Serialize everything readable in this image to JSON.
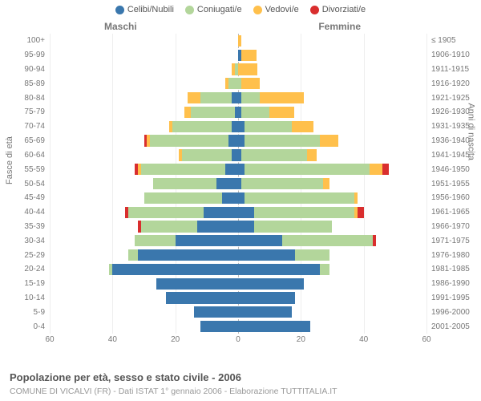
{
  "chart": {
    "type": "population-pyramid",
    "title": "Popolazione per età, sesso e stato civile - 2006",
    "subtitle": "COMUNE DI VICALVI (FR) - Dati ISTAT 1° gennaio 2006 - Elaborazione TUTTITALIA.IT",
    "y_label_left": "Fasce di età",
    "y_label_right": "Anni di nascita",
    "gender_labels": {
      "male": "Maschi",
      "female": "Femmine"
    },
    "legend": [
      {
        "label": "Celibi/Nubili",
        "color": "#3a77ad"
      },
      {
        "label": "Coniugati/e",
        "color": "#b3d69b"
      },
      {
        "label": "Vedovi/e",
        "color": "#ffc04c"
      },
      {
        "label": "Divorziati/e",
        "color": "#d92e2e"
      }
    ],
    "series_keys": [
      "single",
      "married",
      "widowed",
      "divorced"
    ],
    "colors": {
      "single": "#3a77ad",
      "married": "#b3d69b",
      "widowed": "#ffc04c",
      "divorced": "#d92e2e"
    },
    "xlim": 60,
    "x_ticks": [
      60,
      40,
      20,
      0,
      20,
      40,
      60
    ],
    "background_color": "#ffffff",
    "grid_color": "#eeeeee",
    "center_line_color": "#bcbcbc",
    "label_fontsize": 10,
    "rows": [
      {
        "age": "100+",
        "birth": "≤ 1905",
        "m": {
          "single": 0,
          "married": 0,
          "widowed": 0,
          "divorced": 0
        },
        "f": {
          "single": 0,
          "married": 0,
          "widowed": 1,
          "divorced": 0
        }
      },
      {
        "age": "95-99",
        "birth": "1906-1910",
        "m": {
          "single": 0,
          "married": 0,
          "widowed": 0,
          "divorced": 0
        },
        "f": {
          "single": 1,
          "married": 0,
          "widowed": 5,
          "divorced": 0
        }
      },
      {
        "age": "90-94",
        "birth": "1911-1915",
        "m": {
          "single": 0,
          "married": 1,
          "widowed": 1,
          "divorced": 0
        },
        "f": {
          "single": 0,
          "married": 0,
          "widowed": 6,
          "divorced": 0
        }
      },
      {
        "age": "85-89",
        "birth": "1916-1920",
        "m": {
          "single": 0,
          "married": 3,
          "widowed": 1,
          "divorced": 0
        },
        "f": {
          "single": 0,
          "married": 1,
          "widowed": 6,
          "divorced": 0
        }
      },
      {
        "age": "80-84",
        "birth": "1921-1925",
        "m": {
          "single": 2,
          "married": 10,
          "widowed": 4,
          "divorced": 0
        },
        "f": {
          "single": 1,
          "married": 6,
          "widowed": 14,
          "divorced": 0
        }
      },
      {
        "age": "75-79",
        "birth": "1926-1930",
        "m": {
          "single": 1,
          "married": 14,
          "widowed": 2,
          "divorced": 0
        },
        "f": {
          "single": 1,
          "married": 9,
          "widowed": 8,
          "divorced": 0
        }
      },
      {
        "age": "70-74",
        "birth": "1931-1935",
        "m": {
          "single": 2,
          "married": 19,
          "widowed": 1,
          "divorced": 0
        },
        "f": {
          "single": 2,
          "married": 15,
          "widowed": 7,
          "divorced": 0
        }
      },
      {
        "age": "65-69",
        "birth": "1936-1940",
        "m": {
          "single": 3,
          "married": 25,
          "widowed": 1,
          "divorced": 1
        },
        "f": {
          "single": 2,
          "married": 24,
          "widowed": 6,
          "divorced": 0
        }
      },
      {
        "age": "60-64",
        "birth": "1941-1945",
        "m": {
          "single": 2,
          "married": 16,
          "widowed": 1,
          "divorced": 0
        },
        "f": {
          "single": 1,
          "married": 21,
          "widowed": 3,
          "divorced": 0
        }
      },
      {
        "age": "55-59",
        "birth": "1946-1950",
        "m": {
          "single": 4,
          "married": 27,
          "widowed": 1,
          "divorced": 1
        },
        "f": {
          "single": 2,
          "married": 40,
          "widowed": 4,
          "divorced": 2
        }
      },
      {
        "age": "50-54",
        "birth": "1951-1955",
        "m": {
          "single": 7,
          "married": 20,
          "widowed": 0,
          "divorced": 0
        },
        "f": {
          "single": 1,
          "married": 26,
          "widowed": 2,
          "divorced": 0
        }
      },
      {
        "age": "45-49",
        "birth": "1956-1960",
        "m": {
          "single": 5,
          "married": 25,
          "widowed": 0,
          "divorced": 0
        },
        "f": {
          "single": 2,
          "married": 35,
          "widowed": 1,
          "divorced": 0
        }
      },
      {
        "age": "40-44",
        "birth": "1961-1965",
        "m": {
          "single": 11,
          "married": 24,
          "widowed": 0,
          "divorced": 1
        },
        "f": {
          "single": 5,
          "married": 32,
          "widowed": 1,
          "divorced": 2
        }
      },
      {
        "age": "35-39",
        "birth": "1966-1970",
        "m": {
          "single": 13,
          "married": 18,
          "widowed": 0,
          "divorced": 1
        },
        "f": {
          "single": 5,
          "married": 25,
          "widowed": 0,
          "divorced": 0
        }
      },
      {
        "age": "30-34",
        "birth": "1971-1975",
        "m": {
          "single": 20,
          "married": 13,
          "widowed": 0,
          "divorced": 0
        },
        "f": {
          "single": 14,
          "married": 29,
          "widowed": 0,
          "divorced": 1
        }
      },
      {
        "age": "25-29",
        "birth": "1976-1980",
        "m": {
          "single": 32,
          "married": 3,
          "widowed": 0,
          "divorced": 0
        },
        "f": {
          "single": 18,
          "married": 11,
          "widowed": 0,
          "divorced": 0
        }
      },
      {
        "age": "20-24",
        "birth": "1981-1985",
        "m": {
          "single": 40,
          "married": 1,
          "widowed": 0,
          "divorced": 0
        },
        "f": {
          "single": 26,
          "married": 3,
          "widowed": 0,
          "divorced": 0
        }
      },
      {
        "age": "15-19",
        "birth": "1986-1990",
        "m": {
          "single": 26,
          "married": 0,
          "widowed": 0,
          "divorced": 0
        },
        "f": {
          "single": 21,
          "married": 0,
          "widowed": 0,
          "divorced": 0
        }
      },
      {
        "age": "10-14",
        "birth": "1991-1995",
        "m": {
          "single": 23,
          "married": 0,
          "widowed": 0,
          "divorced": 0
        },
        "f": {
          "single": 18,
          "married": 0,
          "widowed": 0,
          "divorced": 0
        }
      },
      {
        "age": "5-9",
        "birth": "1996-2000",
        "m": {
          "single": 14,
          "married": 0,
          "widowed": 0,
          "divorced": 0
        },
        "f": {
          "single": 17,
          "married": 0,
          "widowed": 0,
          "divorced": 0
        }
      },
      {
        "age": "0-4",
        "birth": "2001-2005",
        "m": {
          "single": 12,
          "married": 0,
          "widowed": 0,
          "divorced": 0
        },
        "f": {
          "single": 23,
          "married": 0,
          "widowed": 0,
          "divorced": 0
        }
      }
    ]
  }
}
